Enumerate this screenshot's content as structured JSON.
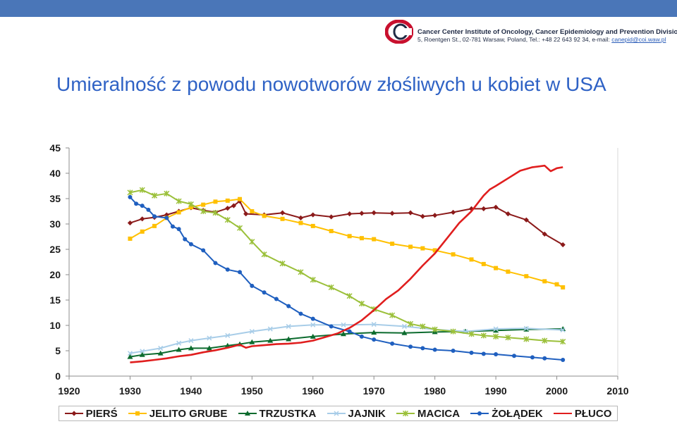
{
  "header": {
    "institution": "Cancer Center Institute of Oncology, Cancer Epidemiology and Prevention Division",
    "address": "5, Roentgen St., 02-781 Warsaw, Poland, Tel.: +48 22 643 92 34, e-mail: ",
    "email": "canepid@coi.waw.pl",
    "colors": {
      "bar": "#4a76b8",
      "logo_red": "#c8102e",
      "title": "#2f62c5"
    }
  },
  "title": "Umieralność z powodu nowotworów złośliwych u kobiet w USA",
  "chart_data": {
    "type": "line",
    "title": "Umieralność z powodu nowotworów złośliwych u kobiet w USA",
    "xlabel": "",
    "ylabel": "",
    "xlim": [
      1920,
      2010
    ],
    "ylim": [
      0,
      45
    ],
    "xticks": [
      1920,
      1930,
      1940,
      1950,
      1960,
      1970,
      1980,
      1990,
      2000,
      2010
    ],
    "yticks": [
      0,
      5,
      10,
      15,
      20,
      25,
      30,
      35,
      40,
      45
    ],
    "grid": false,
    "legend_position": "bottom",
    "series": [
      {
        "name": "PIERŚ",
        "color": "#8b1a1a",
        "marker": "diamond",
        "x": [
          1930,
          1932,
          1934,
          1936,
          1938,
          1940,
          1942,
          1944,
          1946,
          1947,
          1948,
          1949,
          1952,
          1955,
          1958,
          1960,
          1963,
          1966,
          1968,
          1970,
          1973,
          1976,
          1978,
          1980,
          1983,
          1986,
          1988,
          1990,
          1992,
          1995,
          1998,
          2001
        ],
        "y": [
          30.2,
          31,
          31.3,
          31.8,
          32.5,
          33.2,
          32.7,
          32.3,
          33.1,
          33.6,
          34.5,
          32,
          31.8,
          32.2,
          31.2,
          31.8,
          31.4,
          32,
          32.1,
          32.2,
          32.1,
          32.2,
          31.5,
          31.7,
          32.3,
          33,
          33,
          33.3,
          32,
          30.8,
          28,
          25.9
        ]
      },
      {
        "name": "JELITO GRUBE",
        "color": "#ffc000",
        "marker": "square",
        "x": [
          1930,
          1932,
          1934,
          1936,
          1938,
          1940,
          1942,
          1944,
          1946,
          1948,
          1950,
          1952,
          1955,
          1958,
          1960,
          1963,
          1966,
          1968,
          1970,
          1973,
          1976,
          1978,
          1980,
          1983,
          1986,
          1988,
          1990,
          1992,
          1995,
          1998,
          2000,
          2001
        ],
        "y": [
          27.1,
          28.5,
          29.6,
          31.2,
          32.3,
          33.3,
          33.8,
          34.4,
          34.6,
          34.9,
          32.5,
          31.6,
          31,
          30.2,
          29.6,
          28.6,
          27.6,
          27.2,
          27,
          26.1,
          25.5,
          25.2,
          24.8,
          24,
          23,
          22.1,
          21.3,
          20.6,
          19.7,
          18.7,
          18.1,
          17.5
        ]
      },
      {
        "name": "TRZUSTKA",
        "color": "#0c6b2e",
        "marker": "triangle",
        "x": [
          1930,
          1932,
          1935,
          1938,
          1940,
          1943,
          1946,
          1948,
          1950,
          1953,
          1956,
          1960,
          1965,
          1970,
          1975,
          1980,
          1985,
          1990,
          1995,
          2001
        ],
        "y": [
          3.8,
          4.2,
          4.5,
          5.2,
          5.5,
          5.5,
          6,
          6.3,
          6.7,
          7,
          7.3,
          7.8,
          8.3,
          8.6,
          8.5,
          8.7,
          8.8,
          9,
          9.2,
          9.3
        ]
      },
      {
        "name": "JAJNIK",
        "color": "#a8cde8",
        "marker": "x",
        "x": [
          1930,
          1932,
          1935,
          1938,
          1940,
          1943,
          1946,
          1950,
          1953,
          1956,
          1960,
          1965,
          1970,
          1975,
          1980,
          1985,
          1990,
          1995,
          2001
        ],
        "y": [
          4.5,
          4.9,
          5.5,
          6.5,
          7,
          7.5,
          8,
          8.8,
          9.3,
          9.8,
          10.1,
          10.1,
          10.2,
          9.8,
          9.2,
          8.8,
          9.3,
          9.4,
          9.1
        ]
      },
      {
        "name": "MACICA",
        "color": "#9bc03a",
        "marker": "star",
        "x": [
          1930,
          1932,
          1934,
          1936,
          1938,
          1940,
          1942,
          1944,
          1946,
          1948,
          1950,
          1952,
          1955,
          1958,
          1960,
          1963,
          1966,
          1968,
          1970,
          1973,
          1976,
          1978,
          1980,
          1983,
          1986,
          1988,
          1990,
          1992,
          1995,
          1998,
          2001
        ],
        "y": [
          36.2,
          36.7,
          35.6,
          36,
          34.5,
          33.9,
          32.5,
          32.2,
          30.8,
          29.2,
          26.5,
          24,
          22.2,
          20.5,
          19,
          17.5,
          15.8,
          14.3,
          13.2,
          12,
          10.3,
          9.8,
          9.2,
          8.8,
          8.3,
          8,
          7.8,
          7.6,
          7.3,
          7,
          6.8
        ]
      },
      {
        "name": "ŻOŁĄDEK",
        "color": "#1f5fbf",
        "marker": "circle",
        "x": [
          1930,
          1931,
          1932,
          1933,
          1934,
          1936,
          1937,
          1938,
          1939,
          1940,
          1942,
          1944,
          1946,
          1948,
          1950,
          1952,
          1954,
          1956,
          1958,
          1960,
          1963,
          1966,
          1968,
          1970,
          1973,
          1976,
          1978,
          1980,
          1983,
          1986,
          1988,
          1990,
          1993,
          1996,
          1998,
          2001
        ],
        "y": [
          35.3,
          34,
          33.6,
          32.8,
          31.5,
          31.2,
          29.5,
          29,
          27,
          26,
          24.8,
          22.3,
          21,
          20.5,
          17.8,
          16.5,
          15.2,
          13.8,
          12.3,
          11.3,
          9.8,
          8.8,
          7.8,
          7.2,
          6.4,
          5.8,
          5.5,
          5.2,
          5,
          4.6,
          4.4,
          4.3,
          4,
          3.7,
          3.5,
          3.2
        ]
      },
      {
        "name": "PŁUCO",
        "color": "#e01e1e",
        "marker": "none",
        "x": [
          1930,
          1932,
          1934,
          1936,
          1938,
          1940,
          1942,
          1944,
          1946,
          1948,
          1949,
          1950,
          1952,
          1954,
          1956,
          1958,
          1960,
          1962,
          1964,
          1966,
          1968,
          1970,
          1972,
          1974,
          1976,
          1978,
          1980,
          1982,
          1984,
          1986,
          1988,
          1989,
          1990,
          1992,
          1994,
          1996,
          1998,
          1999,
          2000,
          2001
        ],
        "y": [
          2.7,
          2.9,
          3.2,
          3.5,
          3.9,
          4.2,
          4.7,
          5.1,
          5.6,
          6.2,
          5.6,
          5.9,
          6.1,
          6.3,
          6.4,
          6.6,
          7,
          7.7,
          8.4,
          9.5,
          11,
          13,
          15.2,
          16.9,
          19.2,
          21.8,
          24.2,
          27.2,
          30.2,
          32.5,
          35.6,
          36.8,
          37.5,
          39,
          40.5,
          41.2,
          41.5,
          40.4,
          41,
          41.2
        ]
      }
    ]
  }
}
